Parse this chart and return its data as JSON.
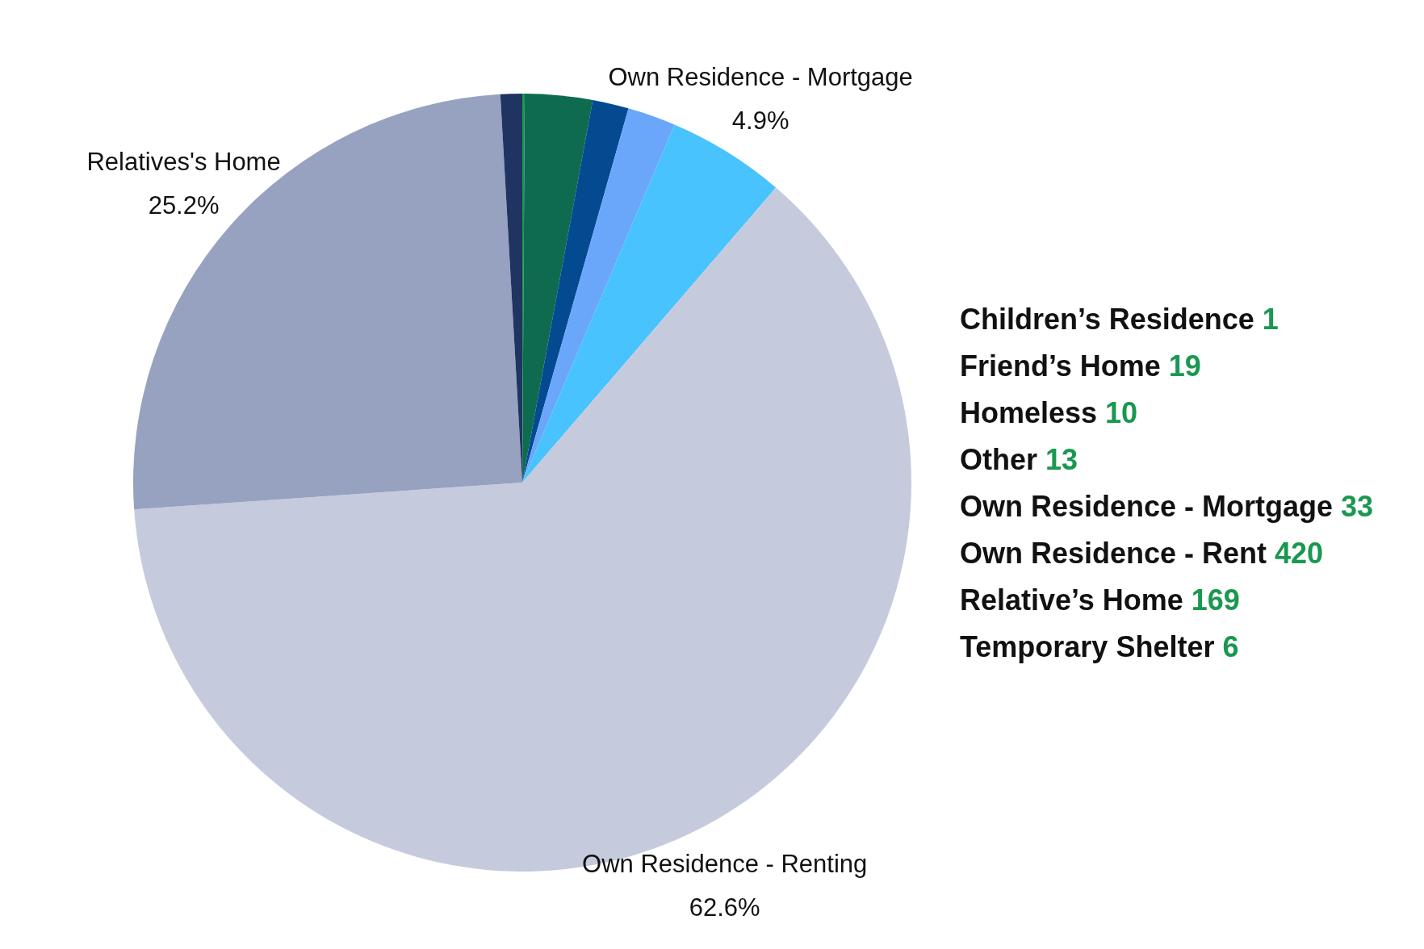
{
  "chart_data": {
    "type": "pie",
    "categories": [
      null,
      null,
      null,
      null,
      "Own Residence - Mortgage",
      "Own Residence - Renting",
      "Relatives's Home",
      null
    ],
    "values": [
      0.1,
      2.8,
      1.5,
      2.0,
      4.9,
      62.6,
      25.2,
      0.9
    ],
    "colors": [
      "#1a9850",
      "#0e6b50",
      "#034a91",
      "#6aa7fb",
      "#48c3fd",
      "#c5cbdd",
      "#97a2c0",
      "#1f3461"
    ],
    "value_labels": [
      null,
      null,
      null,
      null,
      "4.9%",
      "62.6%",
      "25.2%",
      null
    ],
    "annotations": [
      "Children’s Residence 1",
      "Friend’s Home 19",
      "Homeless 10",
      "Other 13",
      "Own Residence - Mortgage 33",
      "Own Residence - Rent 420",
      "Relative’s Home 169",
      "Temporary Shelter 6"
    ]
  }
}
